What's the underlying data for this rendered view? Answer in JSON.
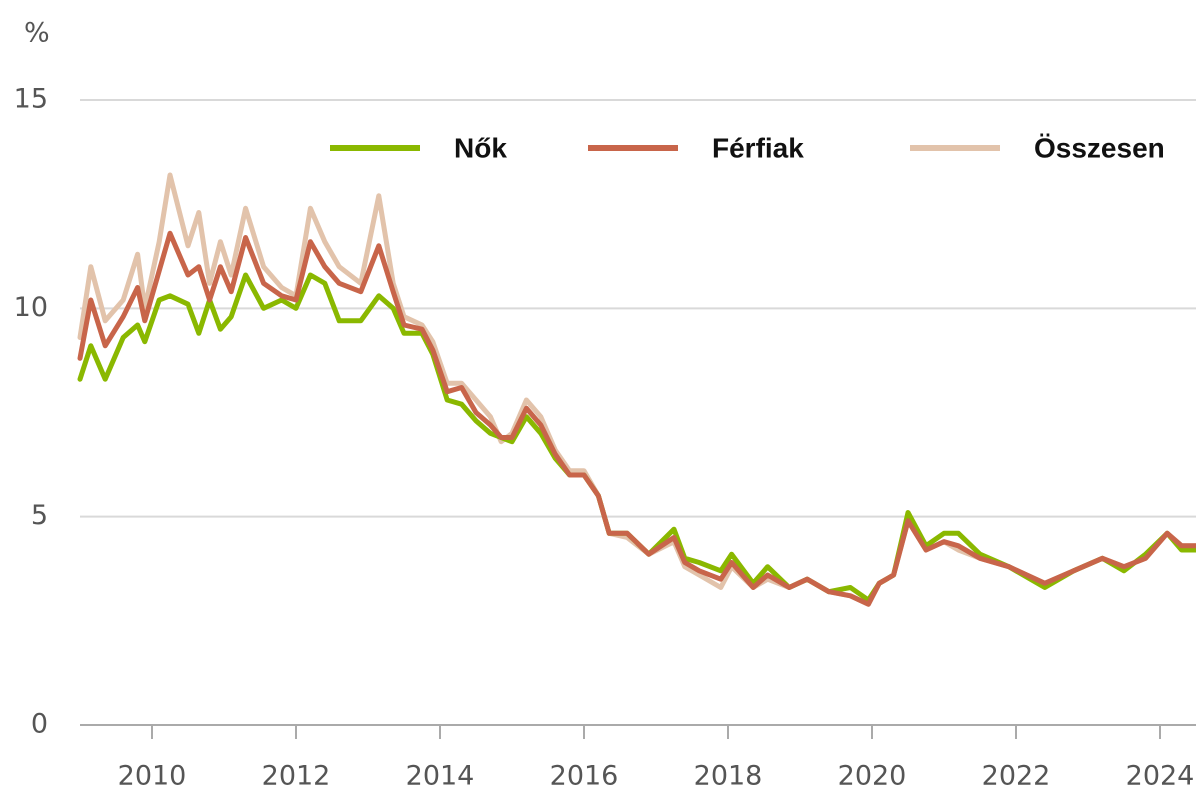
{
  "chart_data": {
    "type": "line",
    "y_label": "%",
    "x": [
      2009.0,
      2009.15,
      2009.35,
      2009.6,
      2009.8,
      2009.9,
      2010.1,
      2010.25,
      2010.5,
      2010.65,
      2010.8,
      2010.95,
      2011.1,
      2011.3,
      2011.55,
      2011.8,
      2012.0,
      2012.2,
      2012.4,
      2012.6,
      2012.9,
      2013.15,
      2013.35,
      2013.5,
      2013.75,
      2013.9,
      2014.1,
      2014.3,
      2014.5,
      2014.7,
      2014.85,
      2015.0,
      2015.2,
      2015.4,
      2015.6,
      2015.8,
      2016.0,
      2016.2,
      2016.35,
      2016.6,
      2016.9,
      2017.25,
      2017.4,
      2017.6,
      2017.9,
      2018.05,
      2018.35,
      2018.55,
      2018.85,
      2019.1,
      2019.4,
      2019.7,
      2019.95,
      2020.1,
      2020.3,
      2020.5,
      2020.75,
      2021.0,
      2021.2,
      2021.5,
      2021.9,
      2022.4,
      2022.8,
      2023.2,
      2023.5,
      2023.8,
      2024.1,
      2024.3,
      2024.5
    ],
    "series": [
      {
        "name": "Összesen",
        "color": "#e2c3ab",
        "values": [
          9.3,
          11.0,
          9.7,
          10.2,
          11.3,
          10.0,
          11.6,
          13.2,
          11.5,
          12.3,
          10.6,
          11.6,
          10.8,
          12.4,
          11.0,
          10.5,
          10.3,
          12.4,
          11.6,
          11.0,
          10.6,
          12.7,
          10.6,
          9.8,
          9.6,
          9.2,
          8.2,
          8.2,
          7.8,
          7.4,
          6.8,
          7.0,
          7.8,
          7.4,
          6.6,
          6.1,
          6.1,
          5.5,
          4.6,
          4.5,
          4.1,
          4.4,
          3.8,
          3.6,
          3.3,
          3.8,
          3.3,
          3.5,
          3.3,
          3.5,
          3.2,
          3.1,
          2.9,
          3.4,
          3.6,
          4.9,
          4.2,
          4.4,
          4.2,
          4.0,
          3.8,
          3.4,
          3.7,
          4.0,
          3.8,
          4.0,
          4.6,
          4.3,
          4.3
        ]
      },
      {
        "name": "Nők",
        "color": "#8ab800",
        "values": [
          8.3,
          9.1,
          8.3,
          9.3,
          9.6,
          9.2,
          10.2,
          10.3,
          10.1,
          9.4,
          10.2,
          9.5,
          9.8,
          10.8,
          10.0,
          10.2,
          10.0,
          10.8,
          10.6,
          9.7,
          9.7,
          10.3,
          10.0,
          9.4,
          9.4,
          8.9,
          7.8,
          7.7,
          7.3,
          7.0,
          6.9,
          6.8,
          7.4,
          7.0,
          6.4,
          6.0,
          6.0,
          5.5,
          4.6,
          4.6,
          4.1,
          4.7,
          4.0,
          3.9,
          3.7,
          4.1,
          3.4,
          3.8,
          3.3,
          3.5,
          3.2,
          3.3,
          3.0,
          3.4,
          3.6,
          5.1,
          4.3,
          4.6,
          4.6,
          4.1,
          3.8,
          3.3,
          3.7,
          4.0,
          3.7,
          4.1,
          4.6,
          4.2,
          4.2
        ]
      },
      {
        "name": "Férfiak",
        "color": "#c8654a",
        "values": [
          8.8,
          10.2,
          9.1,
          9.8,
          10.5,
          9.7,
          10.9,
          11.8,
          10.8,
          11.0,
          10.2,
          11.0,
          10.4,
          11.7,
          10.6,
          10.3,
          10.2,
          11.6,
          11.0,
          10.6,
          10.4,
          11.5,
          10.4,
          9.6,
          9.5,
          9.0,
          8.0,
          8.1,
          7.5,
          7.2,
          6.9,
          6.9,
          7.6,
          7.2,
          6.5,
          6.0,
          6.0,
          5.5,
          4.6,
          4.6,
          4.1,
          4.5,
          3.9,
          3.7,
          3.5,
          3.9,
          3.3,
          3.6,
          3.3,
          3.5,
          3.2,
          3.1,
          2.9,
          3.4,
          3.6,
          4.9,
          4.2,
          4.4,
          4.3,
          4.0,
          3.8,
          3.4,
          3.7,
          4.0,
          3.8,
          4.0,
          4.6,
          4.3,
          4.3
        ]
      }
    ],
    "legend_order": [
      1,
      2,
      0
    ],
    "xlim": [
      2009.0,
      2024.5
    ],
    "xticks": [
      2010,
      2012,
      2014,
      2016,
      2018,
      2020,
      2022,
      2024
    ],
    "ylim": [
      0,
      15
    ],
    "yticks": [
      0,
      5,
      10,
      15
    ],
    "grid": true,
    "legend": "upper right"
  }
}
